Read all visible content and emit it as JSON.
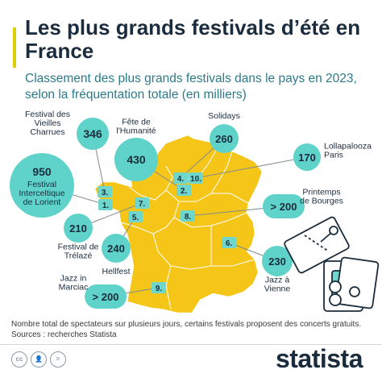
{
  "title": "Les plus grands festivals d’été en France",
  "subtitle": "Classement des plus grands festivals dans le pays en 2023, selon la fréquentation totale (en milliers)",
  "note": "Nombre total de spectateurs sur plusieurs jours, certains festivals proposent des concerts gratuits.",
  "source": "Sources : recherches Statista",
  "brand": "statista",
  "license_icons": [
    "cc-icon",
    "by-icon",
    "nd-icon"
  ],
  "colors": {
    "map": "#f5c518",
    "bubble": "#5fd3c9",
    "marker": "#6fd6cc",
    "title": "#1b2c3d",
    "subtitle": "#2d7a8a",
    "accent": "#e1ce0b"
  },
  "chart_data": {
    "type": "bubble-map",
    "unit": "milliers",
    "festivals": [
      {
        "rank": "1.",
        "name": "Festival Interceltique de Lorient",
        "value": 950,
        "display": "950"
      },
      {
        "rank": "2.",
        "name": "Fête de l'Humanité",
        "value": 430,
        "display": "430"
      },
      {
        "rank": "3.",
        "name": "Festival des Vieilles Charrues",
        "value": 346,
        "display": "346"
      },
      {
        "rank": "4.",
        "name": "Solidays",
        "value": 260,
        "display": "260"
      },
      {
        "rank": "5.",
        "name": "Hellfest",
        "value": 240,
        "display": "240"
      },
      {
        "rank": "6.",
        "name": "Jazz à Vienne",
        "value": 230,
        "display": "230"
      },
      {
        "rank": "7.",
        "name": "Festival de Trélazé",
        "value": 210,
        "display": "210"
      },
      {
        "rank": "8.",
        "name": "Printemps de Bourges",
        "value": 200,
        "display": "> 200"
      },
      {
        "rank": "9.",
        "name": "Jazz in Marciac",
        "value": 200,
        "display": "> 200"
      },
      {
        "rank": "10.",
        "name": "Lollapalooza Paris",
        "value": 170,
        "display": "170"
      }
    ]
  }
}
